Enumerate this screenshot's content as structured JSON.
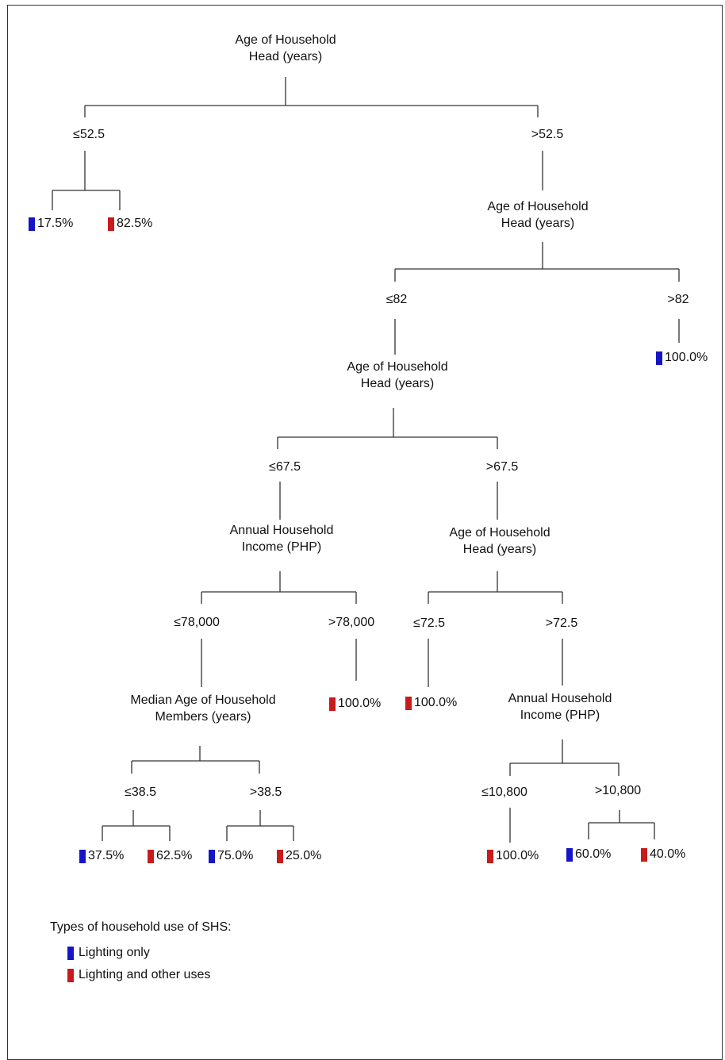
{
  "colors": {
    "lighting_only": "#1515c8",
    "lighting_and_other": "#c81b1b"
  },
  "tree": {
    "root": {
      "label_line1": "Age of Household",
      "label_line2": "Head (years)"
    },
    "root_left": {
      "edge": "≤52.5",
      "leaf_a": {
        "color": "blue",
        "value": "17.5%"
      },
      "leaf_b": {
        "color": "red",
        "value": "82.5%"
      }
    },
    "root_right": {
      "edge": ">52.5",
      "label_line1": "Age of Household",
      "label_line2": "Head (years)",
      "right": {
        "edge": ">82",
        "leaf": {
          "color": "blue",
          "value": "100.0%"
        }
      },
      "left": {
        "edge": "≤82",
        "label_line1": "Age of Household",
        "label_line2": "Head (years)",
        "left": {
          "edge": "≤67.5",
          "label_line1": "Annual Household",
          "label_line2": "Income (PHP)",
          "right": {
            "edge": ">78,000",
            "leaf": {
              "color": "red",
              "value": "100.0%"
            }
          },
          "left": {
            "edge": "≤78,000",
            "label_line1": "Median Age of Household",
            "label_line2": "Members (years)",
            "left": {
              "edge": "≤38.5",
              "leaf_a": {
                "color": "blue",
                "value": "37.5%"
              },
              "leaf_b": {
                "color": "red",
                "value": "62.5%"
              }
            },
            "right": {
              "edge": ">38.5",
              "leaf_a": {
                "color": "blue",
                "value": "75.0%"
              },
              "leaf_b": {
                "color": "red",
                "value": "25.0%"
              }
            }
          }
        },
        "right": {
          "edge": ">67.5",
          "label_line1": "Age of Household",
          "label_line2": "Head (years)",
          "left": {
            "edge": "≤72.5",
            "leaf": {
              "color": "red",
              "value": "100.0%"
            }
          },
          "right": {
            "edge": ">72.5",
            "label_line1": "Annual Household",
            "label_line2": "Income (PHP)",
            "left": {
              "edge": "≤10,800",
              "leaf": {
                "color": "red",
                "value": "100.0%"
              }
            },
            "right": {
              "edge": ">10,800",
              "leaf_a": {
                "color": "blue",
                "value": "60.0%"
              },
              "leaf_b": {
                "color": "red",
                "value": "40.0%"
              }
            }
          }
        }
      }
    }
  },
  "legend": {
    "title": "Types of household use of SHS:",
    "items": [
      {
        "color": "blue",
        "label": "Lighting only"
      },
      {
        "color": "red",
        "label": "Lighting and other uses"
      }
    ]
  }
}
